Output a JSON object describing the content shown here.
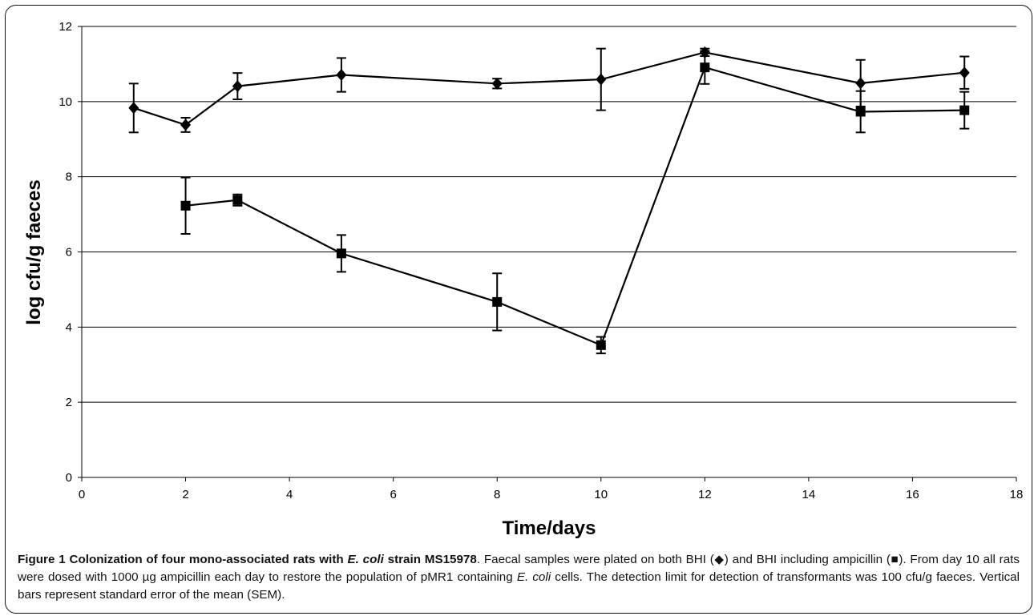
{
  "chart_data": {
    "type": "line",
    "title": "",
    "xlabel": "Time/days",
    "ylabel": "log cfu/g faeces",
    "xlim": [
      0,
      18
    ],
    "ylim": [
      0,
      12
    ],
    "xticks": [
      0,
      2,
      4,
      6,
      8,
      10,
      12,
      14,
      16,
      18
    ],
    "yticks": [
      0,
      2,
      4,
      6,
      8,
      10,
      12
    ],
    "grid": "horizontal",
    "legend": "none",
    "colors": {
      "line": "#000000",
      "grid": "#000000"
    },
    "series": [
      {
        "marker": "diamond",
        "x": [
          1,
          2,
          3,
          5,
          8,
          10,
          12,
          15,
          17
        ],
        "y": [
          9.83,
          9.38,
          10.41,
          10.71,
          10.48,
          10.59,
          11.31,
          10.49,
          10.77
        ],
        "err": [
          0.65,
          0.19,
          0.35,
          0.45,
          0.13,
          0.82,
          0.1,
          0.62,
          0.43
        ]
      },
      {
        "marker": "square",
        "x": [
          2,
          3,
          5,
          8,
          10,
          12,
          15,
          17
        ],
        "y": [
          7.23,
          7.38,
          5.96,
          4.67,
          3.52,
          10.91,
          9.73,
          9.77
        ],
        "err": [
          0.75,
          0.15,
          0.49,
          0.76,
          0.22,
          0.44,
          0.55,
          0.49
        ]
      }
    ]
  },
  "caption": {
    "title": "Figure 1 Colonization of four mono-associated rats with ",
    "title_italic": "E. coli",
    "title_end": " strain MS15978",
    "p1": ". Faecal samples were plated on both BHI (◆) and BHI including ampicillin (■). From day 10 all rats were dosed with 1000 µg ampicillin each day to restore the population of pMR1 containing ",
    "p1_italic": "E. coli",
    "p2": " cells. The detection limit for detection of transformants was 100 cfu/g faeces. Vertical bars represent standard error of the mean (SEM)."
  }
}
